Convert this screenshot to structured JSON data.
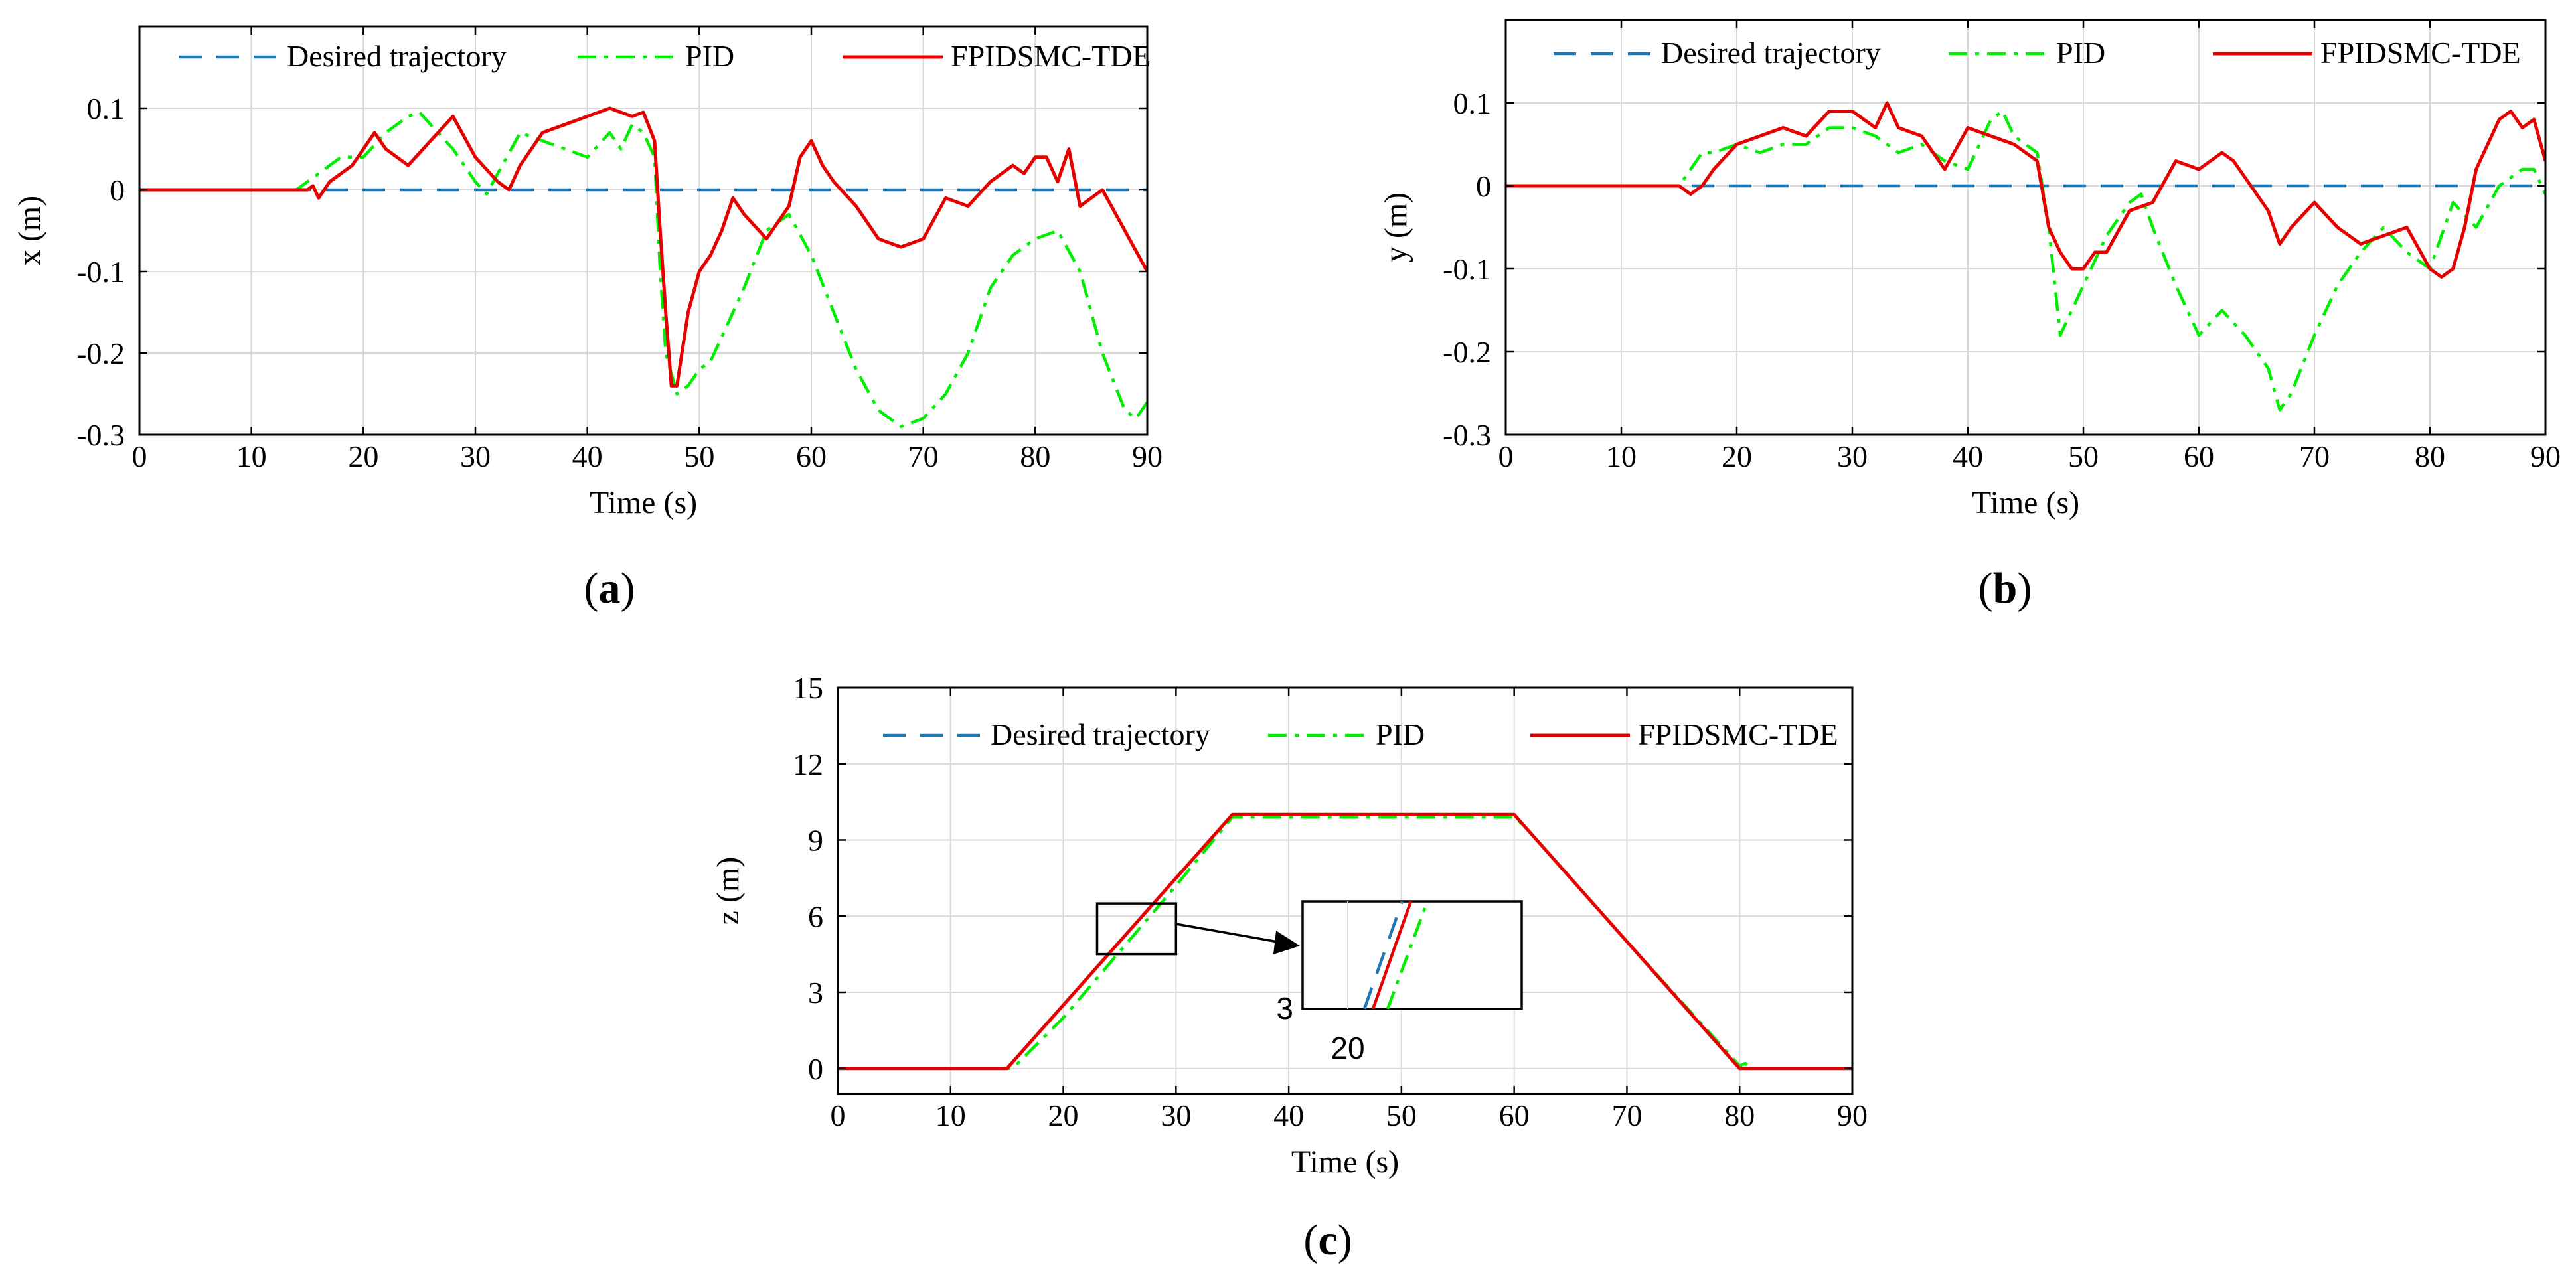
{
  "chart_data": [
    {
      "id": "a",
      "type": "line",
      "caption": "a",
      "xlabel": "Time (s)",
      "ylabel": "x (m)",
      "xlim": [
        0,
        90
      ],
      "ylim": [
        -0.3,
        0.2
      ],
      "xticks": [
        0,
        10,
        20,
        30,
        40,
        50,
        60,
        70,
        80,
        90
      ],
      "yticks": [
        -0.3,
        -0.2,
        -0.1,
        0,
        0.1
      ],
      "ytick_labels": [
        "-0.3",
        "-0.2",
        "-0.1",
        "0",
        "0.1"
      ],
      "grid": true,
      "legend": [
        "Desired trajectory",
        "PID",
        "FPIDSMC-TDE"
      ],
      "series": [
        {
          "name": "Desired trajectory",
          "color": "#1f77b4",
          "dash": "dashed",
          "x": [
            0,
            90
          ],
          "y": [
            0,
            0
          ]
        },
        {
          "name": "PID",
          "color": "#00ee00",
          "dash": "dashdot",
          "x": [
            0,
            14,
            15,
            16,
            17,
            18,
            20,
            22,
            24,
            25,
            26,
            28,
            30,
            31,
            32,
            34,
            36,
            38,
            40,
            42,
            43,
            44,
            45,
            46,
            46.5,
            47,
            48,
            49,
            50,
            51,
            52,
            54,
            56,
            58,
            60,
            62,
            64,
            66,
            68,
            70,
            72,
            74,
            76,
            78,
            80,
            82,
            84,
            86,
            88,
            89,
            90
          ],
          "y": [
            0,
            0,
            0.01,
            0.02,
            0.03,
            0.04,
            0.04,
            0.07,
            0.09,
            0.095,
            0.08,
            0.05,
            0.01,
            -0.005,
            0.02,
            0.07,
            0.06,
            0.05,
            0.04,
            0.07,
            0.05,
            0.08,
            0.07,
            0.04,
            -0.1,
            -0.2,
            -0.25,
            -0.24,
            -0.22,
            -0.21,
            -0.18,
            -0.12,
            -0.05,
            -0.03,
            -0.08,
            -0.15,
            -0.22,
            -0.27,
            -0.29,
            -0.28,
            -0.25,
            -0.2,
            -0.12,
            -0.08,
            -0.06,
            -0.05,
            -0.1,
            -0.2,
            -0.27,
            -0.28,
            -0.26
          ]
        },
        {
          "name": "FPIDSMC-TDE",
          "color": "#e60000",
          "dash": "solid",
          "x": [
            0,
            15,
            15.5,
            16,
            17,
            19,
            21,
            22,
            24,
            26,
            28,
            30,
            32,
            33,
            34,
            36,
            38,
            40,
            42,
            44,
            45,
            46,
            46.5,
            47,
            47.5,
            48,
            49,
            50,
            51,
            52,
            53,
            54,
            56,
            58,
            59,
            60,
            61,
            62,
            64,
            66,
            68,
            70,
            72,
            74,
            76,
            78,
            79,
            80,
            81,
            82,
            83,
            84,
            85,
            86,
            88,
            90
          ],
          "y": [
            0,
            0,
            0.005,
            -0.01,
            0.01,
            0.03,
            0.07,
            0.05,
            0.03,
            0.06,
            0.09,
            0.04,
            0.01,
            0.0,
            0.03,
            0.07,
            0.08,
            0.09,
            0.1,
            0.09,
            0.095,
            0.06,
            -0.05,
            -0.15,
            -0.24,
            -0.24,
            -0.15,
            -0.1,
            -0.08,
            -0.05,
            -0.01,
            -0.03,
            -0.06,
            -0.02,
            0.04,
            0.06,
            0.03,
            0.01,
            -0.02,
            -0.06,
            -0.07,
            -0.06,
            -0.01,
            -0.02,
            0.01,
            0.03,
            0.02,
            0.04,
            0.04,
            0.01,
            0.05,
            -0.02,
            -0.01,
            0.0,
            -0.05,
            -0.1
          ]
        }
      ]
    },
    {
      "id": "b",
      "type": "line",
      "caption": "b",
      "xlabel": "Time (s)",
      "ylabel": "y (m)",
      "xlim": [
        0,
        90
      ],
      "ylim": [
        -0.3,
        0.2
      ],
      "xticks": [
        0,
        10,
        20,
        30,
        40,
        50,
        60,
        70,
        80,
        90
      ],
      "yticks": [
        -0.3,
        -0.2,
        -0.1,
        0,
        0.1
      ],
      "ytick_labels": [
        "-0.3",
        "-0.2",
        "-0.1",
        "0",
        "0.1"
      ],
      "grid": true,
      "legend": [
        "Desired trajectory",
        "PID",
        "FPIDSMC-TDE"
      ],
      "series": [
        {
          "name": "Desired trajectory",
          "color": "#1f77b4",
          "dash": "dashed",
          "x": [
            0,
            90
          ],
          "y": [
            0,
            0
          ]
        },
        {
          "name": "PID",
          "color": "#00ee00",
          "dash": "dashdot",
          "x": [
            0,
            15,
            16,
            17,
            18,
            20,
            22,
            24,
            26,
            28,
            30,
            32,
            34,
            36,
            38,
            40,
            42,
            43,
            44,
            46,
            47,
            48,
            49,
            50,
            52,
            54,
            55,
            56,
            58,
            60,
            62,
            64,
            66,
            67,
            68,
            70,
            72,
            74,
            76,
            78,
            80,
            82,
            84,
            86,
            88,
            89,
            90
          ],
          "y": [
            0,
            0,
            0.02,
            0.04,
            0.04,
            0.05,
            0.04,
            0.05,
            0.05,
            0.07,
            0.07,
            0.06,
            0.04,
            0.05,
            0.03,
            0.02,
            0.08,
            0.09,
            0.06,
            0.04,
            -0.05,
            -0.18,
            -0.15,
            -0.12,
            -0.06,
            -0.02,
            -0.01,
            -0.05,
            -0.12,
            -0.18,
            -0.15,
            -0.18,
            -0.22,
            -0.27,
            -0.25,
            -0.18,
            -0.12,
            -0.08,
            -0.05,
            -0.08,
            -0.1,
            -0.02,
            -0.05,
            0.0,
            0.02,
            0.02,
            -0.01
          ]
        },
        {
          "name": "FPIDSMC-TDE",
          "color": "#e60000",
          "dash": "solid",
          "x": [
            0,
            15,
            16,
            17,
            18,
            20,
            22,
            24,
            26,
            28,
            30,
            32,
            33,
            34,
            36,
            38,
            40,
            42,
            44,
            46,
            47,
            48,
            49,
            50,
            51,
            52,
            54,
            56,
            58,
            60,
            62,
            63,
            64,
            66,
            67,
            68,
            70,
            72,
            74,
            76,
            78,
            80,
            81,
            82,
            83,
            84,
            86,
            87,
            88,
            89,
            90
          ],
          "y": [
            0,
            0,
            -0.01,
            0.0,
            0.02,
            0.05,
            0.06,
            0.07,
            0.06,
            0.09,
            0.09,
            0.07,
            0.1,
            0.07,
            0.06,
            0.02,
            0.07,
            0.06,
            0.05,
            0.03,
            -0.05,
            -0.08,
            -0.1,
            -0.1,
            -0.08,
            -0.08,
            -0.03,
            -0.02,
            0.03,
            0.02,
            0.04,
            0.03,
            0.01,
            -0.03,
            -0.07,
            -0.05,
            -0.02,
            -0.05,
            -0.07,
            -0.06,
            -0.05,
            -0.1,
            -0.11,
            -0.1,
            -0.05,
            0.02,
            0.08,
            0.09,
            0.07,
            0.08,
            0.03
          ]
        }
      ]
    },
    {
      "id": "c",
      "type": "line",
      "caption": "c",
      "xlabel": "Time (s)",
      "ylabel": "z (m)",
      "xlim": [
        0,
        90
      ],
      "ylim": [
        -1,
        15
      ],
      "xticks": [
        0,
        10,
        20,
        30,
        40,
        50,
        60,
        70,
        80,
        90
      ],
      "yticks": [
        0,
        3,
        6,
        9,
        12,
        15
      ],
      "ytick_labels": [
        "0",
        "3",
        "6",
        "9",
        "12",
        "15"
      ],
      "grid": true,
      "legend": [
        "Desired trajectory",
        "PID",
        "FPIDSMC-TDE"
      ],
      "series": [
        {
          "name": "Desired trajectory",
          "color": "#1f77b4",
          "dash": "dashed",
          "x": [
            0,
            15,
            35,
            60,
            80,
            90
          ],
          "y": [
            0,
            0,
            10,
            10,
            0,
            0
          ]
        },
        {
          "name": "PID",
          "color": "#00ee00",
          "dash": "dashdot",
          "x": [
            0,
            15.5,
            20,
            25,
            30,
            35,
            36,
            60,
            61,
            70,
            80,
            80.5,
            81,
            90
          ],
          "y": [
            0,
            0,
            2.0,
            4.6,
            7.2,
            9.9,
            9.9,
            9.9,
            9.5,
            5.0,
            0.1,
            0.2,
            0.0,
            0
          ]
        },
        {
          "name": "FPIDSMC-TDE",
          "color": "#e60000",
          "dash": "solid",
          "x": [
            0,
            15,
            35,
            60,
            80,
            90
          ],
          "y": [
            0,
            0,
            10,
            10,
            0,
            0
          ]
        }
      ],
      "inset": {
        "xtick_label": "20",
        "ytick_label": "3"
      }
    }
  ]
}
